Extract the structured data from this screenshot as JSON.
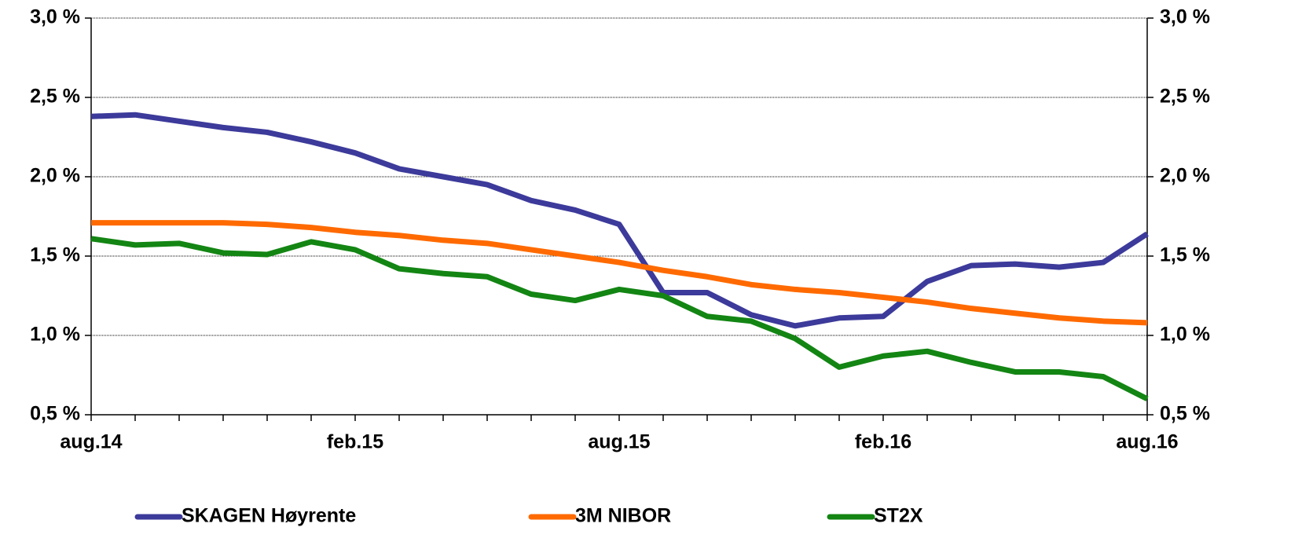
{
  "chart_data": {
    "type": "line",
    "categories": [
      "aug.14",
      null,
      null,
      null,
      null,
      null,
      "feb.15",
      null,
      null,
      null,
      null,
      null,
      "aug.15",
      null,
      null,
      null,
      null,
      null,
      "feb.16",
      null,
      null,
      null,
      null,
      null,
      "aug.16"
    ],
    "series": [
      {
        "name": "SKAGEN Høyrente",
        "color": "#3c3a9a",
        "values": [
          2.38,
          2.39,
          2.35,
          2.31,
          2.28,
          2.22,
          2.15,
          2.05,
          2.0,
          1.95,
          1.85,
          1.79,
          1.7,
          1.27,
          1.27,
          1.13,
          1.06,
          1.11,
          1.12,
          1.34,
          1.44,
          1.45,
          1.43,
          1.46,
          1.64
        ]
      },
      {
        "name": "3M NIBOR",
        "color": "#ff6a00",
        "values": [
          1.71,
          1.71,
          1.71,
          1.71,
          1.7,
          1.68,
          1.65,
          1.63,
          1.6,
          1.58,
          1.54,
          1.5,
          1.46,
          1.41,
          1.37,
          1.32,
          1.29,
          1.27,
          1.24,
          1.21,
          1.17,
          1.14,
          1.11,
          1.09,
          1.08
        ]
      },
      {
        "name": "ST2X",
        "color": "#138513",
        "values": [
          1.61,
          1.57,
          1.58,
          1.52,
          1.51,
          1.59,
          1.54,
          1.42,
          1.39,
          1.37,
          1.26,
          1.22,
          1.29,
          1.25,
          1.12,
          1.09,
          0.98,
          0.8,
          0.87,
          0.9,
          0.83,
          0.77,
          0.77,
          0.74,
          0.6
        ]
      }
    ],
    "ylim": [
      0.5,
      3.0
    ],
    "yticks": [
      {
        "value": 0.5,
        "label": "0,5 %"
      },
      {
        "value": 1.0,
        "label": "1,0 %"
      },
      {
        "value": 1.5,
        "label": "1,5 %"
      },
      {
        "value": 2.0,
        "label": "2,0 %"
      },
      {
        "value": 2.5,
        "label": "2,5 %"
      },
      {
        "value": 3.0,
        "label": "3,0 %"
      }
    ],
    "y2lim": [
      0.5,
      3.0
    ],
    "y2ticks": [
      {
        "value": 0.5,
        "label": "0,5 %"
      },
      {
        "value": 1.0,
        "label": "1,0 %"
      },
      {
        "value": 1.5,
        "label": "1,5 %"
      },
      {
        "value": 2.0,
        "label": "2,0 %"
      },
      {
        "value": 2.5,
        "label": "2,5 %"
      },
      {
        "value": 3.0,
        "label": "3,0 %"
      }
    ],
    "grid": true,
    "legend": "bottom"
  }
}
